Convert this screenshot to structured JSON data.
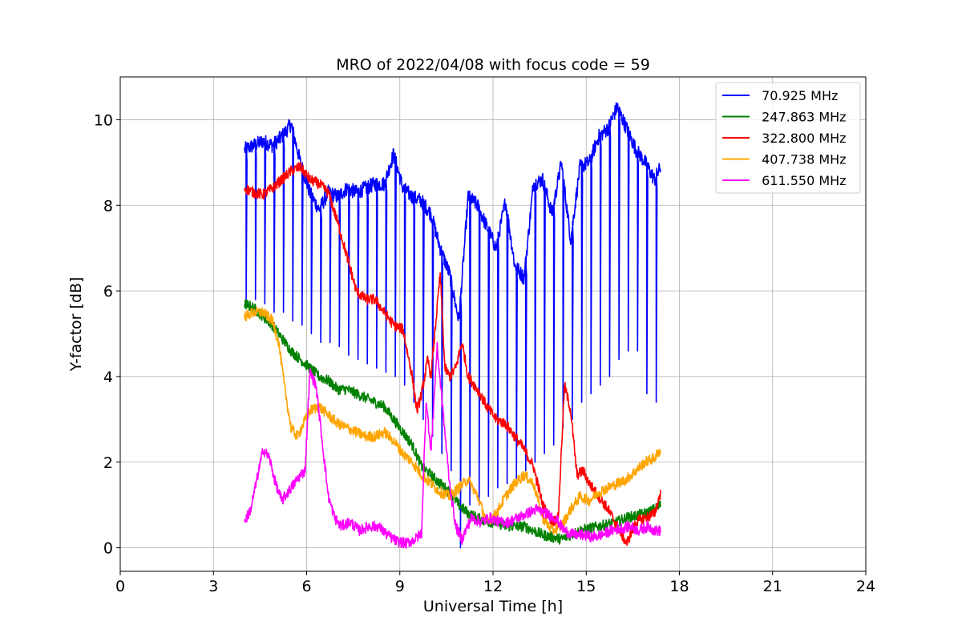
{
  "chart_data": {
    "type": "line",
    "title": "MRO of 2022/04/08 with focus code = 59",
    "xlabel": "Universal Time [h]",
    "ylabel": "Y-factor [dB]",
    "xlim": [
      0,
      24
    ],
    "ylim": [
      -0.55,
      11
    ],
    "xticks": [
      0,
      3,
      6,
      9,
      12,
      15,
      18,
      21,
      24
    ],
    "yticks": [
      0,
      2,
      4,
      6,
      8,
      10
    ],
    "grid": true,
    "legend_position": "top-right",
    "series": [
      {
        "name": " 70.925 MHz",
        "color": "#0000ff",
        "x": [
          4.0,
          4.3,
          4.6,
          4.9,
          5.2,
          5.5,
          5.8,
          6.1,
          6.4,
          6.7,
          7.0,
          7.3,
          7.6,
          7.9,
          8.2,
          8.5,
          8.8,
          9.1,
          9.4,
          9.7,
          10.0,
          10.3,
          10.6,
          10.9,
          11.2,
          11.5,
          11.8,
          12.1,
          12.4,
          12.7,
          13.0,
          13.3,
          13.6,
          13.9,
          14.2,
          14.5,
          14.8,
          15.1,
          15.4,
          15.7,
          16.0,
          16.3,
          16.6,
          16.9,
          17.2,
          17.4
        ],
        "y": [
          9.3,
          9.4,
          9.5,
          9.4,
          9.6,
          9.9,
          9.0,
          8.3,
          7.9,
          8.3,
          8.2,
          8.4,
          8.3,
          8.4,
          8.5,
          8.5,
          9.2,
          8.4,
          8.2,
          8.1,
          7.8,
          7.0,
          6.4,
          5.3,
          8.2,
          8.0,
          7.5,
          7.0,
          8.1,
          6.6,
          6.3,
          8.5,
          8.6,
          7.8,
          9.0,
          7.2,
          8.9,
          9.0,
          9.6,
          9.8,
          10.3,
          9.8,
          9.3,
          9.0,
          8.6,
          8.9
        ],
        "dips": {
          "x": [
            4.05,
            4.35,
            4.65,
            4.95,
            5.25,
            5.55,
            5.85,
            6.15,
            6.45,
            6.75,
            7.05,
            7.35,
            7.65,
            7.95,
            8.25,
            8.55,
            8.85,
            9.15,
            9.45,
            9.75,
            10.05,
            10.35,
            10.65,
            10.95,
            11.25,
            11.55,
            11.85,
            12.15,
            12.45,
            12.75,
            13.05,
            13.35,
            13.65,
            13.95,
            14.25,
            14.55,
            14.85,
            15.15,
            15.45,
            15.75,
            16.05,
            16.35,
            16.65,
            16.95,
            17.25
          ],
          "y": [
            5.8,
            5.8,
            5.7,
            5.5,
            5.5,
            5.3,
            5.2,
            5.0,
            4.8,
            4.8,
            4.7,
            4.5,
            4.4,
            4.3,
            4.2,
            4.1,
            4.0,
            3.8,
            3.4,
            3.0,
            2.6,
            2.2,
            1.8,
            0.0,
            1.0,
            1.0,
            1.2,
            1.4,
            1.5,
            1.6,
            1.8,
            2.0,
            2.2,
            2.4,
            2.8,
            3.0,
            3.4,
            3.6,
            3.8,
            4.0,
            4.4,
            4.6,
            4.6,
            3.6,
            3.4
          ]
        }
      },
      {
        "name": " 247.863 MHz",
        "color": "#008000",
        "x": [
          4.0,
          4.3,
          4.6,
          4.9,
          5.2,
          5.5,
          5.8,
          6.1,
          6.4,
          6.7,
          7.0,
          7.3,
          7.6,
          7.9,
          8.2,
          8.5,
          8.8,
          9.1,
          9.4,
          9.7,
          10.0,
          10.3,
          10.6,
          10.9,
          11.2,
          11.5,
          11.8,
          12.1,
          12.4,
          12.7,
          13.0,
          13.3,
          13.6,
          13.9,
          14.2,
          14.5,
          14.8,
          15.1,
          15.4,
          15.7,
          16.0,
          16.3,
          16.6,
          16.9,
          17.2,
          17.4
        ],
        "y": [
          5.7,
          5.6,
          5.4,
          5.2,
          4.9,
          4.6,
          4.4,
          4.2,
          4.0,
          3.9,
          3.7,
          3.7,
          3.6,
          3.5,
          3.4,
          3.3,
          3.0,
          2.7,
          2.4,
          1.9,
          1.7,
          1.5,
          1.3,
          1.0,
          0.8,
          0.7,
          0.6,
          0.6,
          0.5,
          0.5,
          0.5,
          0.4,
          0.3,
          0.25,
          0.2,
          0.3,
          0.4,
          0.45,
          0.5,
          0.55,
          0.6,
          0.7,
          0.75,
          0.8,
          0.9,
          1.0
        ]
      },
      {
        "name": " 322.800 MHz",
        "color": "#ff0000",
        "x": [
          4.0,
          4.3,
          4.6,
          4.9,
          5.2,
          5.5,
          5.8,
          6.1,
          6.4,
          6.7,
          7.0,
          7.3,
          7.6,
          7.9,
          8.2,
          8.5,
          8.8,
          9.1,
          9.4,
          9.55,
          9.7,
          9.9,
          10.0,
          10.15,
          10.3,
          10.45,
          10.6,
          10.8,
          11.0,
          11.2,
          11.5,
          11.8,
          12.1,
          12.4,
          12.7,
          13.0,
          13.3,
          13.6,
          13.9,
          14.1,
          14.3,
          14.5,
          14.7,
          14.9,
          15.1,
          15.4,
          15.7,
          16.0,
          16.3,
          16.6,
          16.9,
          17.2,
          17.4
        ],
        "y": [
          8.4,
          8.3,
          8.25,
          8.4,
          8.6,
          8.8,
          8.9,
          8.6,
          8.5,
          8.3,
          7.6,
          6.8,
          6.0,
          5.8,
          5.8,
          5.5,
          5.2,
          5.1,
          4.0,
          3.2,
          3.6,
          4.4,
          4.0,
          5.2,
          6.4,
          4.2,
          4.0,
          4.2,
          4.8,
          4.0,
          3.7,
          3.3,
          3.0,
          2.9,
          2.6,
          2.3,
          1.9,
          1.0,
          0.6,
          0.7,
          3.8,
          3.2,
          1.7,
          1.8,
          1.5,
          1.2,
          0.9,
          0.5,
          0.1,
          0.6,
          0.7,
          0.8,
          1.3
        ]
      },
      {
        "name": " 407.738 MHz",
        "color": "#ffa500",
        "x": [
          4.0,
          4.3,
          4.6,
          4.9,
          5.1,
          5.3,
          5.5,
          5.7,
          5.9,
          6.1,
          6.4,
          6.7,
          7.0,
          7.3,
          7.6,
          7.9,
          8.2,
          8.5,
          8.8,
          9.1,
          9.4,
          9.7,
          10.0,
          10.3,
          10.6,
          10.9,
          11.2,
          11.5,
          11.8,
          12.1,
          12.4,
          12.7,
          13.0,
          13.3,
          13.6,
          13.9,
          14.2,
          14.5,
          14.8,
          15.1,
          15.4,
          15.7,
          16.0,
          16.3,
          16.6,
          16.9,
          17.2,
          17.4
        ],
        "y": [
          5.4,
          5.5,
          5.5,
          5.3,
          4.8,
          3.7,
          2.8,
          2.6,
          2.9,
          3.2,
          3.3,
          3.1,
          2.9,
          2.8,
          2.7,
          2.6,
          2.6,
          2.7,
          2.5,
          2.2,
          2.0,
          1.7,
          1.5,
          1.3,
          1.2,
          1.4,
          1.6,
          1.2,
          0.6,
          0.8,
          1.2,
          1.5,
          1.7,
          1.5,
          0.7,
          0.4,
          0.5,
          0.9,
          1.2,
          1.1,
          1.3,
          1.4,
          1.5,
          1.6,
          1.8,
          2.0,
          2.1,
          2.3
        ]
      },
      {
        "name": " 611.550 MHz",
        "color": "#ff00ff",
        "x": [
          4.0,
          4.2,
          4.4,
          4.6,
          4.8,
          5.0,
          5.2,
          5.4,
          5.6,
          5.8,
          5.95,
          6.1,
          6.3,
          6.5,
          6.7,
          6.9,
          7.1,
          7.4,
          7.7,
          8.0,
          8.3,
          8.6,
          8.9,
          9.2,
          9.5,
          9.7,
          9.85,
          10.0,
          10.2,
          10.4,
          10.6,
          10.8,
          11.0,
          11.3,
          11.6,
          11.9,
          12.2,
          12.5,
          12.8,
          13.1,
          13.4,
          13.7,
          14.0,
          14.3,
          14.6,
          14.9,
          15.2,
          15.5,
          15.8,
          16.1,
          16.4,
          16.7,
          17.0,
          17.2,
          17.4
        ],
        "y": [
          0.6,
          0.9,
          1.6,
          2.3,
          2.1,
          1.5,
          1.1,
          1.3,
          1.5,
          1.7,
          1.8,
          4.1,
          3.8,
          2.5,
          1.2,
          0.7,
          0.5,
          0.6,
          0.4,
          0.5,
          0.5,
          0.3,
          0.15,
          0.1,
          0.2,
          0.35,
          3.5,
          2.2,
          4.7,
          3.1,
          1.5,
          0.5,
          0.2,
          0.7,
          0.6,
          0.7,
          0.6,
          0.6,
          0.7,
          0.8,
          0.9,
          0.8,
          0.7,
          0.4,
          0.3,
          0.3,
          0.25,
          0.3,
          0.4,
          0.45,
          0.5,
          0.4,
          0.5,
          0.4,
          0.4
        ]
      }
    ]
  }
}
